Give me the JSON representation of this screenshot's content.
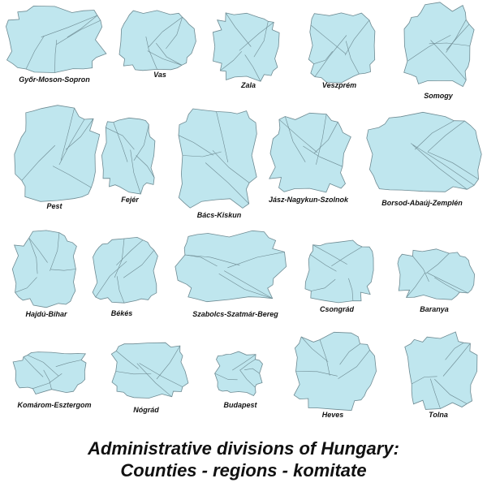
{
  "colors": {
    "fill": "#bfe6ee",
    "stroke": "#6d8a92",
    "text": "#111111"
  },
  "counties": [
    {
      "name": "Győr-Moson-Sopron"
    },
    {
      "name": "Vas"
    },
    {
      "name": "Zala"
    },
    {
      "name": "Veszprém"
    },
    {
      "name": "Somogy"
    },
    {
      "name": "Pest"
    },
    {
      "name": "Fejér"
    },
    {
      "name": "Bács-Kiskun"
    },
    {
      "name": "Jász-Nagykun-Szolnok"
    },
    {
      "name": "Borsod-Abaúj-Zemplén"
    },
    {
      "name": "Hajdú-Bihar"
    },
    {
      "name": "Békés"
    },
    {
      "name": "Szabolcs-Szatmár-Bereg"
    },
    {
      "name": "Csongrád"
    },
    {
      "name": "Baranya"
    },
    {
      "name": "Komárom-Esztergom"
    },
    {
      "name": "Nógrád"
    },
    {
      "name": "Budapest"
    },
    {
      "name": "Heves"
    },
    {
      "name": "Tolna"
    }
  ],
  "title": {
    "line1": "Administrative divisions of Hungary:",
    "line2": "Counties - regions - komitate"
  }
}
